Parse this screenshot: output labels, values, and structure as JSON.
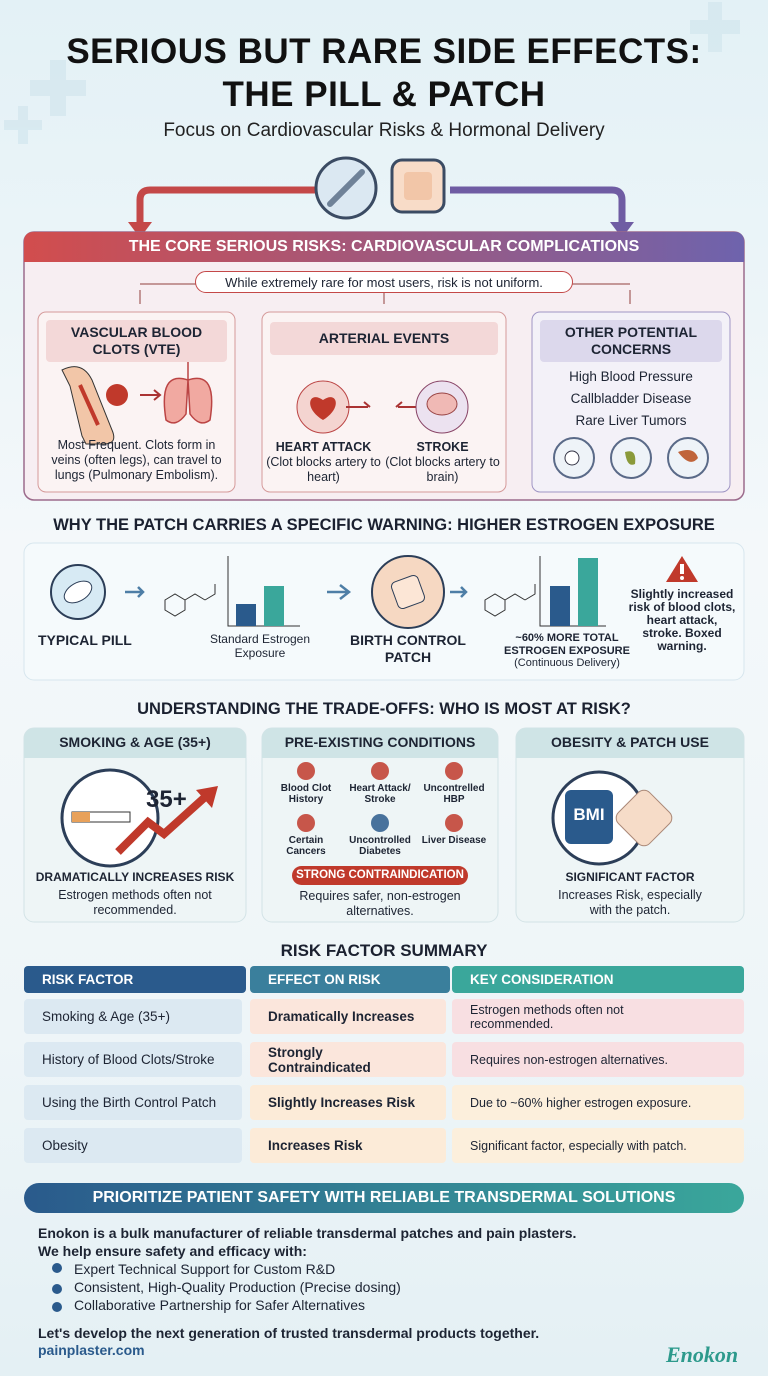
{
  "header": {
    "title": [
      "SERIOUS BUT RARE SIDE EFFECTS:",
      "THE PILL & PATCH"
    ],
    "subtitle": "Focus on Cardiovascular Risks & Hormonal Delivery"
  },
  "core": {
    "heading": "THE CORE SERIOUS RISKS: CARDIOVASCULAR COMPLICATIONS",
    "warning": "While extremely rare for most users, risk is not uniform.",
    "vte": {
      "title": "VASCULAR BLOOD CLOTS (VTE)",
      "text": "Most Frequent. Clots form in veins (often legs), can travel to lungs (Pulmonary Embolism)."
    },
    "arterial": {
      "title": "ARTERIAL EVENTS",
      "events": [
        {
          "label": "HEART ATTACK",
          "note": "(Clot blocks artery to heart)"
        },
        {
          "label": "STROKE",
          "note": "(Clot blocks artery to brain)"
        }
      ]
    },
    "other": {
      "title": "OTHER POTENTIAL CONCERNS",
      "items": [
        "High Blood Pressure",
        "Callbladder Disease",
        "Rare Liver Tumors"
      ]
    }
  },
  "patch": {
    "heading": "WHY THE PATCH CARRIES A SPECIFIC WARNING: HIGHER ESTROGEN EXPOSURE",
    "pill": "TYPICAL PILL",
    "standard": "Standard Estrogen Exposure",
    "patch": "BIRTH CONTROL PATCH",
    "more": "~60% MORE TOTAL ESTROGEN EXPOSURE",
    "more_note": "(Continuous Delivery)",
    "warning": "Slightly increased risk of blood clots, heart attack, stroke. Boxed warning."
  },
  "tradeoffs": {
    "heading": "UNDERSTANDING THE TRADE-OFFS: WHO IS MOST AT RISK?",
    "smoking": {
      "title": "SMOKING & AGE (35+)",
      "badge": "35+",
      "headline": "DRAMATICALLY INCREASES RISK",
      "text": "Estrogen methods often not recommended."
    },
    "conditions": {
      "title": "PRE-EXISTING CONDITIONS",
      "items": [
        "Blood Clot History",
        "Heart Attack/ Stroke",
        "Uncontrelled HBP",
        "Certain Cancers",
        "Uncontrolled Diabetes",
        "Liver Disease"
      ],
      "badge": "STRONG CONTRAINDICATION",
      "text": "Requires safer, non-estrogen alternatives."
    },
    "obesity": {
      "title": "OBESITY & PATCH USE",
      "badge": "BMI",
      "headline": "SIGNIFICANT FACTOR",
      "text": "Increases Risk, especially with the patch."
    }
  },
  "summary": {
    "heading": "RISK FACTOR SUMMARY",
    "columns": [
      "RISK FACTOR",
      "EFFECT ON RISK",
      "KEY CONSIDERATION"
    ],
    "rows": [
      [
        "Smoking & Age (35+)",
        "Dramatically Increases",
        "Estrogen methods often not recommended."
      ],
      [
        "History of Blood Clots/Stroke",
        "Strongly Contraindicated",
        "Requires non-estrogen alternatives."
      ],
      [
        "Using the Birth Control Patch",
        "Slightly Increases Risk",
        "Due to ~60% higher estrogen exposure."
      ],
      [
        "Obesity",
        "Increases Risk",
        "Significant factor, especially with patch."
      ]
    ]
  },
  "footer": {
    "banner": "PRIORITIZE PATIENT SAFETY WITH RELIABLE TRANSDERMAL SOLUTIONS",
    "intro": [
      "Enokon is a bulk manufacturer of reliable transdermal patches and pain plasters.",
      "We help ensure safety and efficacy with:"
    ],
    "bullets": [
      "Expert Technical Support for Custom R&D",
      "Consistent, High-Quality Production (Precise dosing)",
      "Collaborative Partnership for Safer Alternatives"
    ],
    "closing": "Let's develop the next generation of trusted transdermal products together.",
    "url": "painplaster.com",
    "brand": "Enokon"
  }
}
